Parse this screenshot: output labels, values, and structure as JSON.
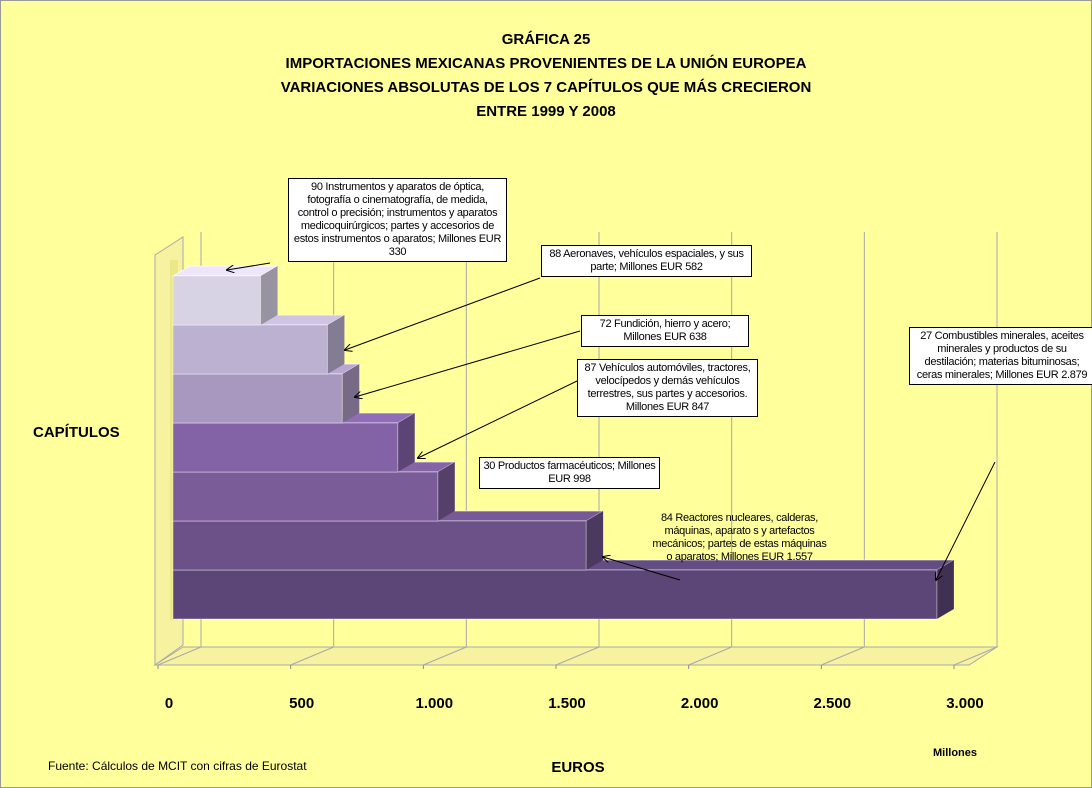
{
  "chart_data": {
    "type": "bar",
    "orientation": "horizontal",
    "title": [
      "GRÁFICA 25",
      "IMPORTACIONES MEXICANAS PROVENIENTES DE LA UNIÓN EUROPEA",
      "VARIACIONES ABSOLUTAS DE LOS 7 CAPÍTULOS QUE MÁS CRECIERON",
      "ENTRE 1999 Y 2008"
    ],
    "y_label": "CAPÍTULOS",
    "x_label": "EUROS",
    "x_unit": "Millones",
    "source": "Fuente:  Cálculos de MCIT con cifras de Eurostat",
    "categories": [
      null,
      null,
      null,
      null,
      null,
      null,
      null
    ],
    "values": [
      330,
      582,
      638,
      847,
      998,
      1557,
      2879
    ],
    "value_labels": [
      "90 Instrumentos y aparatos de óptica, fotografía o cinematografía, de medida, control o precisión; instrumentos y aparatos medicoquirúrgicos; partes y accesorios de estos instrumentos o aparatos; Millones EUR 330",
      "88 Aeronaves, vehículos espaciales, y sus parte; Millones EUR 582",
      "72 Fundición, hierro y acero; Millones EUR 638",
      "87 Vehículos automóviles, tractores, velocípedos y demás vehículos terrestres, sus partes y accesorios. Millones EUR 847",
      "30 Productos  farmacéuticos; Millones EUR 998",
      "84 Reactores nucleares, calderas, máquinas, aparato s y artefactos mecánicos; partes de estas máquinas o aparatos; Millones EUR 1.557",
      "27 Combustibles minerales, aceites minerales y productos de su destilación; materias bituminosas; ceras minerales; Millones EUR 2.879"
    ],
    "colors": [
      "#d8d2e5",
      "#bdb1d1",
      "#a898c0",
      "#8462a6",
      "#7a5c98",
      "#6b5188",
      "#5b4677"
    ],
    "xlim": [
      0,
      3000
    ],
    "xticks": [
      0,
      500,
      {
        "value": 1000,
        "label": "1.000"
      },
      {
        "value": 1500,
        "label": "1.500"
      },
      {
        "value": 2000,
        "label": "2.000"
      },
      {
        "value": 2500,
        "label": "2.500"
      },
      {
        "value": 3000,
        "label": "3.000"
      }
    ],
    "grid": true
  }
}
